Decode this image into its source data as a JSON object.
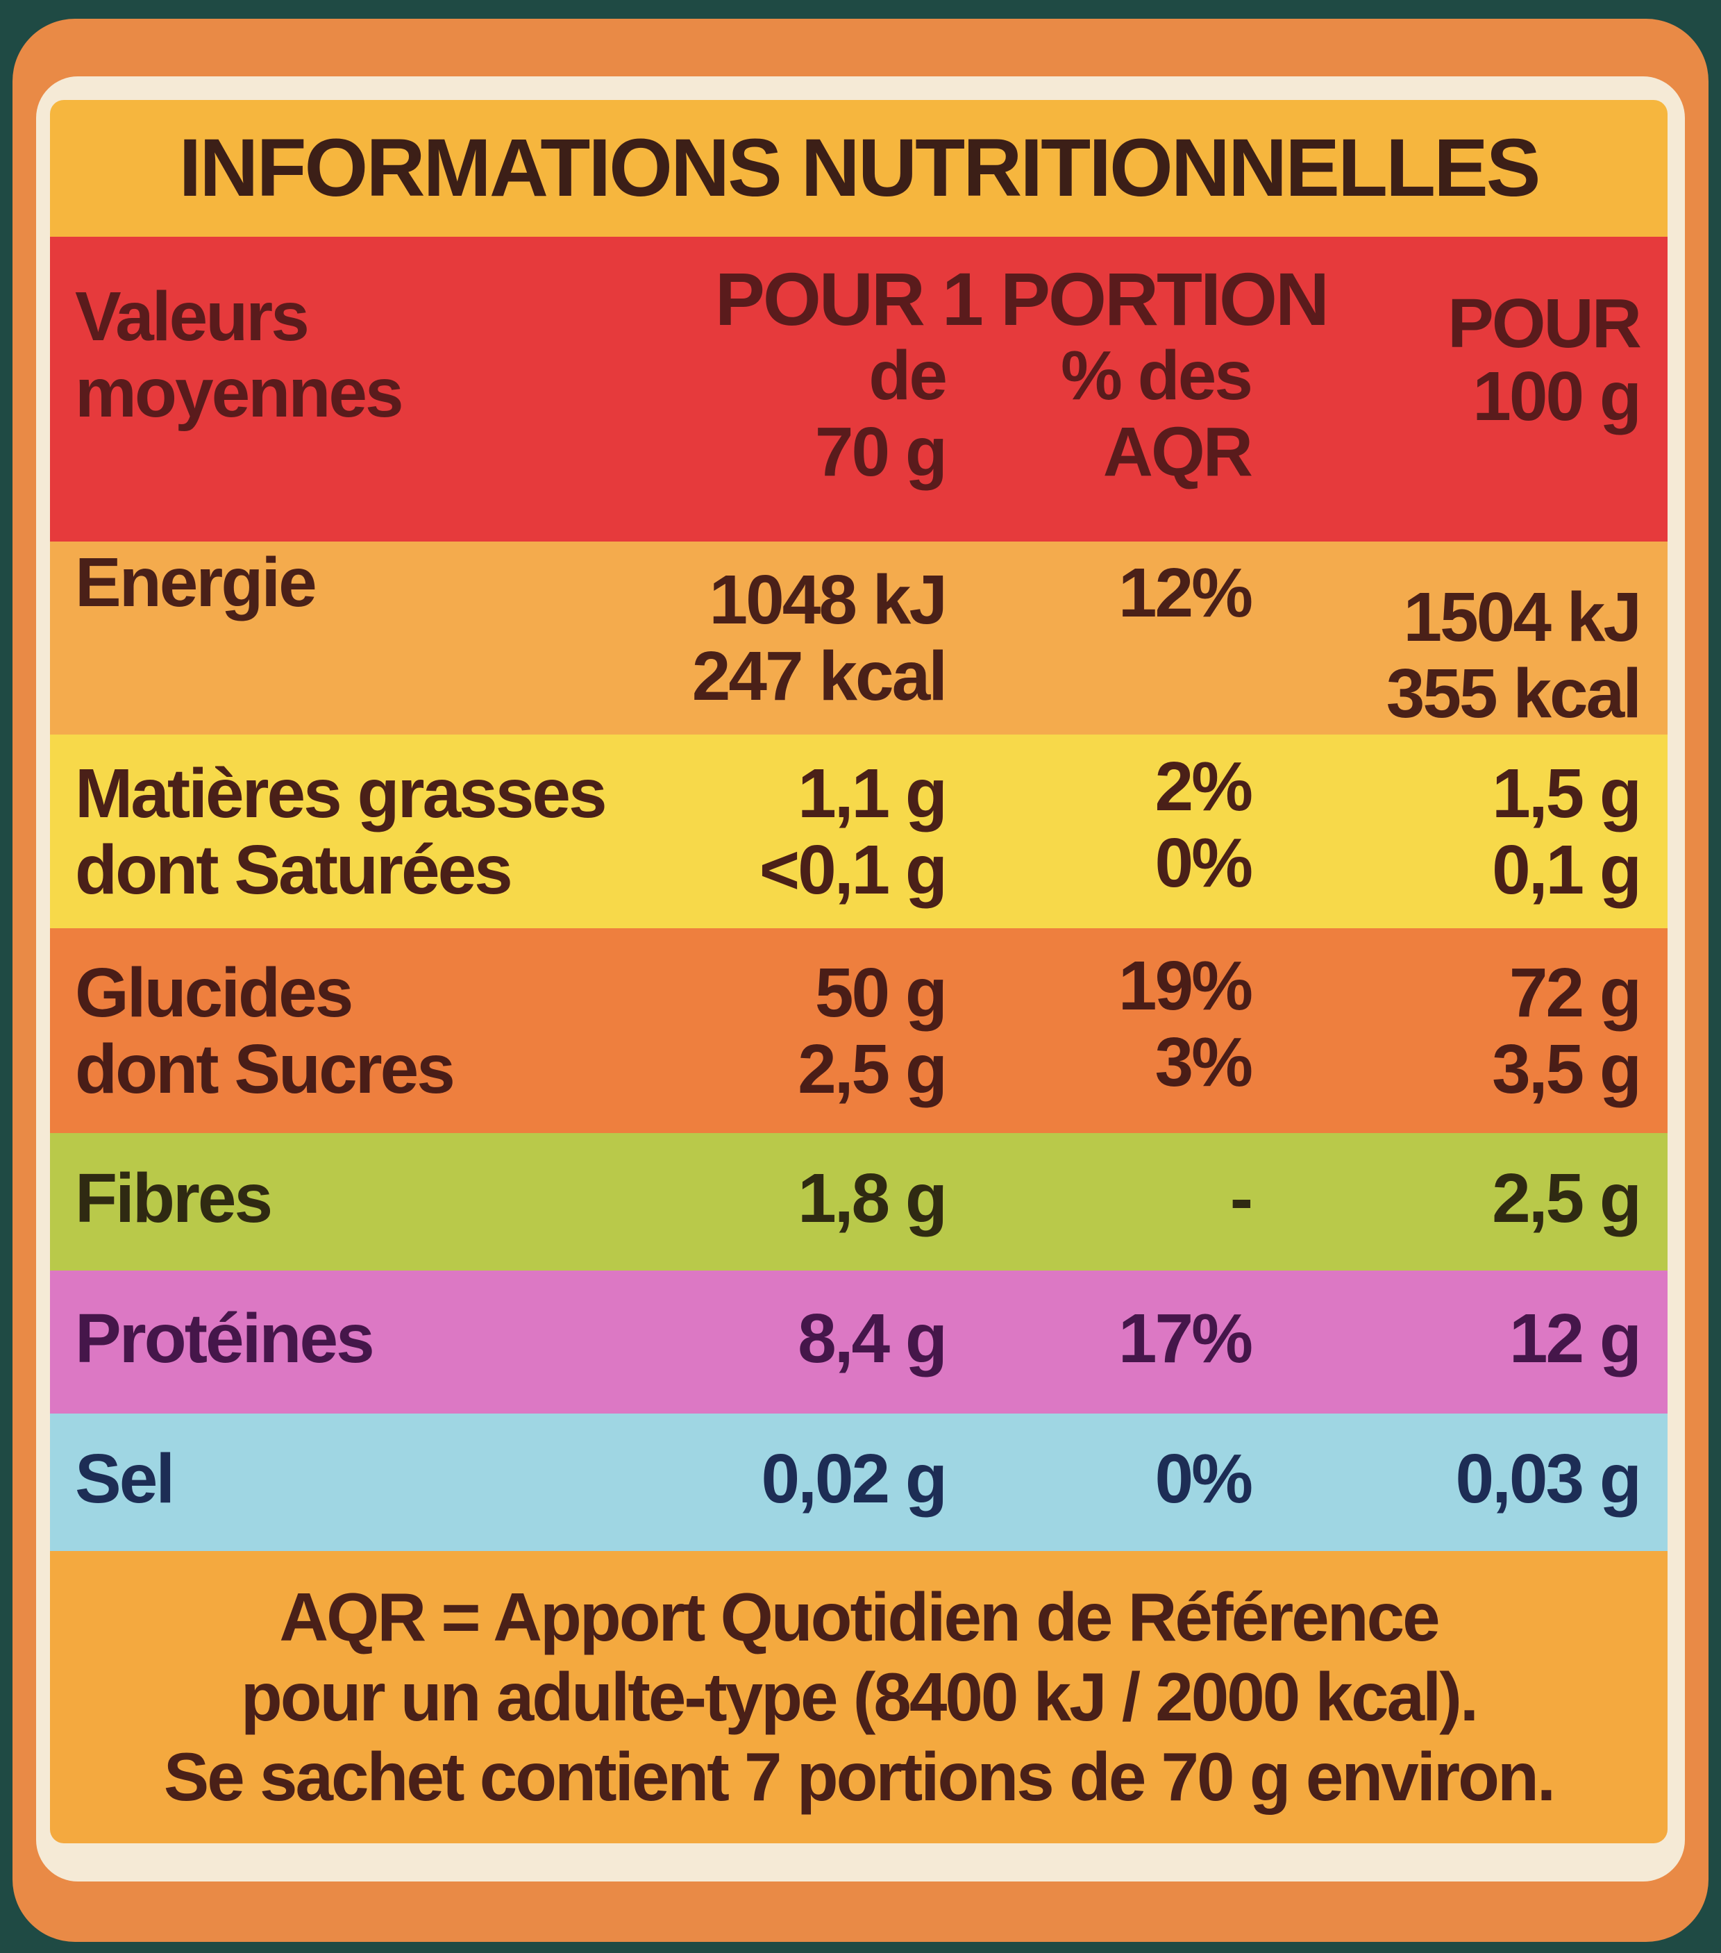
{
  "header": {
    "title": "INFORMATIONS NUTRITIONNELLES"
  },
  "table": {
    "head": {
      "label": [
        "Valeurs",
        "moyennes"
      ],
      "span": "POUR 1 PORTION",
      "portion": [
        "de",
        "70 g"
      ],
      "aqr": [
        "% des",
        "AQR"
      ],
      "per100": [
        "POUR",
        "100 g"
      ]
    },
    "rows": [
      {
        "label": [
          "Energie"
        ],
        "portion": [
          "1048 kJ",
          "247 kcal"
        ],
        "aqr": [
          "12%"
        ],
        "per100": [
          "1504 kJ",
          "355 kcal"
        ]
      },
      {
        "label": [
          "Matières grasses",
          "dont Saturées"
        ],
        "portion": [
          "1,1 g",
          "<0,1 g"
        ],
        "aqr": [
          "2%",
          "0%"
        ],
        "per100": [
          "1,5 g",
          "0,1 g"
        ]
      },
      {
        "label": [
          "Glucides",
          "dont Sucres"
        ],
        "portion": [
          "50 g",
          "2,5 g"
        ],
        "aqr": [
          "19%",
          "3%"
        ],
        "per100": [
          "72 g",
          "3,5 g"
        ]
      },
      {
        "label": [
          "Fibres"
        ],
        "portion": [
          "1,8 g"
        ],
        "aqr": [
          "-"
        ],
        "per100": [
          "2,5 g"
        ]
      },
      {
        "label": [
          "Protéines"
        ],
        "portion": [
          "8,4 g"
        ],
        "aqr": [
          "17%"
        ],
        "per100": [
          "12 g"
        ]
      },
      {
        "label": [
          "Sel"
        ],
        "portion": [
          "0,02 g"
        ],
        "aqr": [
          "0%"
        ],
        "per100": [
          "0,03 g"
        ]
      }
    ]
  },
  "footer": {
    "lines": [
      "AQR = Apport Quotidien de Référence",
      "pour un adulte-type (8400 kJ / 2000 kcal).",
      "Se sachet contient 7 portions de 70 g environ."
    ]
  }
}
